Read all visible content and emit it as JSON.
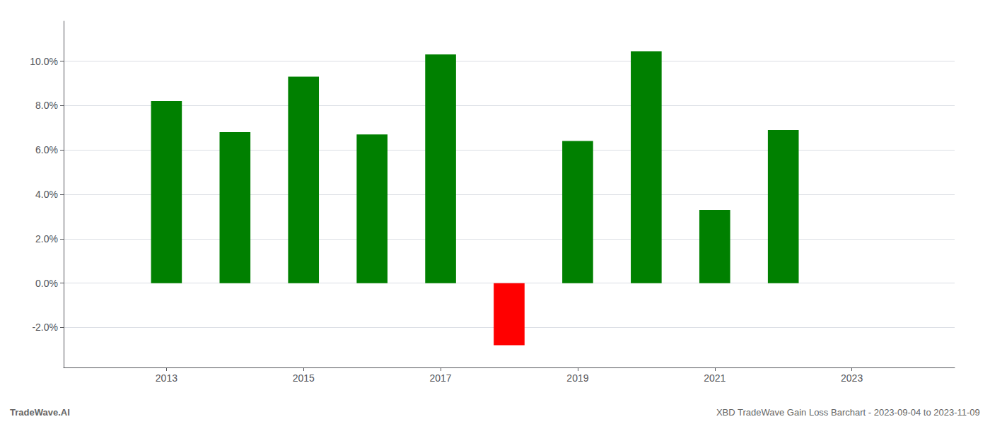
{
  "chart_data": {
    "type": "bar",
    "x": [
      2013,
      2014,
      2015,
      2016,
      2017,
      2018,
      2019,
      2020,
      2021,
      2022
    ],
    "values": [
      0.082,
      0.068,
      0.093,
      0.067,
      0.103,
      -0.028,
      0.064,
      0.1045,
      0.033,
      0.069
    ],
    "colors": [
      "#008000",
      "#008000",
      "#008000",
      "#008000",
      "#008000",
      "#ff0000",
      "#008000",
      "#008000",
      "#008000",
      "#008000"
    ],
    "xlim": [
      2011.5,
      2024.5
    ],
    "xticks": [
      2013,
      2015,
      2017,
      2019,
      2021,
      2023
    ],
    "ylim": [
      -0.038,
      0.118
    ],
    "yticks": [
      {
        "value": -0.02,
        "label": "-2.0%"
      },
      {
        "value": 0.0,
        "label": "0.0%"
      },
      {
        "value": 0.02,
        "label": "2.0%"
      },
      {
        "value": 0.04,
        "label": "4.0%"
      },
      {
        "value": 0.06,
        "label": "6.0%"
      },
      {
        "value": 0.08,
        "label": "8.0%"
      },
      {
        "value": 0.1,
        "label": "10.0%"
      }
    ],
    "grid": true,
    "annotations": [
      "TradeWave.AI",
      "XBD TradeWave Gain Loss Barchart - 2023-09-04 to 2023-11-09"
    ]
  }
}
